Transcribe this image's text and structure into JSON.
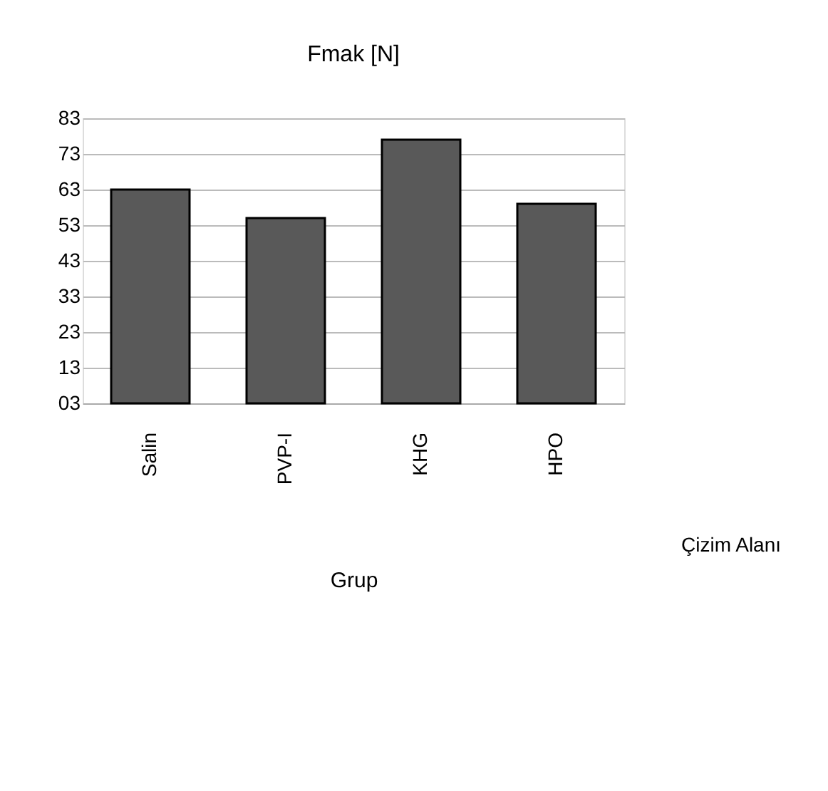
{
  "chart_data": {
    "type": "bar",
    "title": "Fmak [N]",
    "xlabel": "Grup",
    "categories": [
      "Salin",
      "PVP-I",
      "KHG",
      "HPO"
    ],
    "values": [
      63,
      55,
      77,
      59
    ],
    "color": "#595959",
    "ylim": [
      3,
      83
    ],
    "yticks": [
      {
        "value": 3,
        "label": "03"
      },
      13,
      23,
      33,
      43,
      53,
      63,
      73,
      83
    ],
    "grid": "y",
    "annotations": [
      "Çizim Alanı"
    ]
  }
}
